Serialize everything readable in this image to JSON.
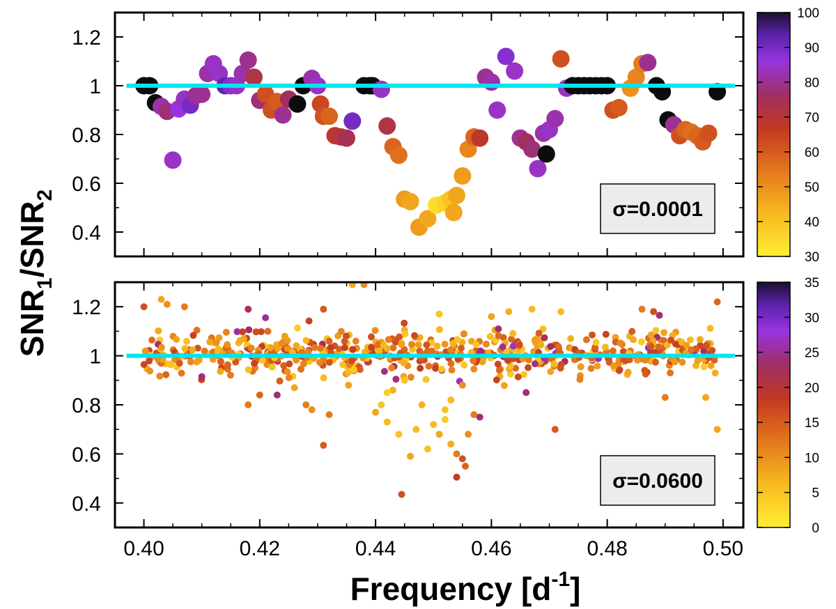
{
  "chart_data": [
    {
      "type": "scatter",
      "panel": "top",
      "annotation": "σ=0.0001",
      "xlim": [
        0.395,
        0.5035
      ],
      "ylim": [
        0.3,
        1.3
      ],
      "yticks": [
        "0.4",
        "0.6",
        "0.8",
        "1",
        "1.2"
      ],
      "ytick_values": [
        0.4,
        0.6,
        0.8,
        1.0,
        1.2
      ],
      "reference_line": {
        "y": 1.0,
        "x_from": 0.397,
        "x_to": 0.502,
        "color": "#00e5ee"
      },
      "colorbar": {
        "min": 30,
        "max": 100,
        "ticks": [
          "30",
          "40",
          "50",
          "60",
          "70",
          "80",
          "90",
          "100"
        ],
        "tick_values": [
          30,
          40,
          50,
          60,
          70,
          80,
          90,
          100
        ]
      },
      "point_size": "large",
      "points": [
        [
          0.4,
          1.0,
          100
        ],
        [
          0.401,
          1.0,
          100
        ],
        [
          0.402,
          0.93,
          100
        ],
        [
          0.403,
          0.915,
          82
        ],
        [
          0.404,
          0.895,
          78
        ],
        [
          0.405,
          0.695,
          84
        ],
        [
          0.406,
          0.905,
          86
        ],
        [
          0.407,
          0.945,
          84
        ],
        [
          0.408,
          0.92,
          90
        ],
        [
          0.409,
          0.96,
          80
        ],
        [
          0.41,
          0.965,
          80
        ],
        [
          0.411,
          1.05,
          82
        ],
        [
          0.412,
          1.09,
          84
        ],
        [
          0.413,
          1.05,
          84
        ],
        [
          0.414,
          1.0,
          93
        ],
        [
          0.415,
          1.0,
          88
        ],
        [
          0.416,
          1.0,
          84
        ],
        [
          0.417,
          1.05,
          82
        ],
        [
          0.418,
          1.105,
          80
        ],
        [
          0.419,
          1.035,
          72
        ],
        [
          0.42,
          0.94,
          78
        ],
        [
          0.421,
          0.965,
          62
        ],
        [
          0.422,
          0.9,
          62
        ],
        [
          0.423,
          0.935,
          60
        ],
        [
          0.424,
          0.88,
          80
        ],
        [
          0.425,
          0.945,
          76
        ],
        [
          0.4265,
          0.925,
          100
        ],
        [
          0.4275,
          1.0,
          100
        ],
        [
          0.429,
          1.03,
          82
        ],
        [
          0.43,
          1.0,
          84
        ],
        [
          0.4305,
          0.925,
          64
        ],
        [
          0.431,
          0.875,
          62
        ],
        [
          0.432,
          0.875,
          58
        ],
        [
          0.433,
          0.795,
          68
        ],
        [
          0.434,
          0.79,
          70
        ],
        [
          0.435,
          0.785,
          74
        ],
        [
          0.436,
          0.855,
          90
        ],
        [
          0.438,
          1.0,
          100
        ],
        [
          0.439,
          1.0,
          100
        ],
        [
          0.4395,
          1.0,
          100
        ],
        [
          0.441,
          0.985,
          84
        ],
        [
          0.442,
          0.835,
          72
        ],
        [
          0.443,
          0.75,
          58
        ],
        [
          0.444,
          0.715,
          56
        ],
        [
          0.445,
          0.535,
          48
        ],
        [
          0.446,
          0.525,
          46
        ],
        [
          0.4475,
          0.42,
          48
        ],
        [
          0.449,
          0.455,
          46
        ],
        [
          0.4505,
          0.51,
          34
        ],
        [
          0.452,
          0.52,
          36
        ],
        [
          0.453,
          0.535,
          40
        ],
        [
          0.4535,
          0.48,
          46
        ],
        [
          0.454,
          0.55,
          46
        ],
        [
          0.455,
          0.63,
          48
        ],
        [
          0.456,
          0.74,
          52
        ],
        [
          0.457,
          0.79,
          58
        ],
        [
          0.458,
          0.785,
          68
        ],
        [
          0.459,
          1.035,
          80
        ],
        [
          0.46,
          1.015,
          82
        ],
        [
          0.461,
          0.9,
          84
        ],
        [
          0.4625,
          1.12,
          88
        ],
        [
          0.464,
          1.06,
          84
        ],
        [
          0.465,
          0.785,
          80
        ],
        [
          0.466,
          0.77,
          76
        ],
        [
          0.467,
          0.74,
          78
        ],
        [
          0.468,
          0.66,
          84
        ],
        [
          0.469,
          0.805,
          82
        ],
        [
          0.4695,
          0.72,
          100
        ],
        [
          0.47,
          0.82,
          84
        ],
        [
          0.471,
          0.865,
          82
        ],
        [
          0.472,
          1.11,
          62
        ],
        [
          0.473,
          0.99,
          84
        ],
        [
          0.474,
          1.0,
          100
        ],
        [
          0.475,
          1.0,
          100
        ],
        [
          0.476,
          1.0,
          100
        ],
        [
          0.477,
          1.0,
          100
        ],
        [
          0.478,
          1.0,
          100
        ],
        [
          0.479,
          1.0,
          100
        ],
        [
          0.48,
          1.0,
          100
        ],
        [
          0.481,
          0.9,
          62
        ],
        [
          0.482,
          0.91,
          60
        ],
        [
          0.484,
          0.99,
          50
        ],
        [
          0.485,
          1.035,
          52
        ],
        [
          0.486,
          1.09,
          54
        ],
        [
          0.487,
          1.095,
          80
        ],
        [
          0.4885,
          1.0,
          100
        ],
        [
          0.4895,
          0.975,
          100
        ],
        [
          0.4905,
          0.86,
          100
        ],
        [
          0.4915,
          0.84,
          80
        ],
        [
          0.4925,
          0.795,
          62
        ],
        [
          0.4935,
          0.82,
          58
        ],
        [
          0.4945,
          0.81,
          56
        ],
        [
          0.4955,
          0.795,
          58
        ],
        [
          0.4965,
          0.77,
          60
        ],
        [
          0.4975,
          0.805,
          62
        ],
        [
          0.499,
          0.975,
          100
        ]
      ]
    },
    {
      "type": "scatter",
      "panel": "bottom",
      "annotation": "σ=0.0600",
      "xlabel": "Frequency [d-1]",
      "ylabel": "SNR1/SNR2",
      "xlim": [
        0.395,
        0.5035
      ],
      "ylim": [
        0.3,
        1.3
      ],
      "xticks": [
        "0.40",
        "0.42",
        "0.44",
        "0.46",
        "0.48",
        "0.50"
      ],
      "xtick_values": [
        0.4,
        0.42,
        0.44,
        0.46,
        0.48,
        0.5
      ],
      "yticks": [
        "0.4",
        "0.6",
        "0.8",
        "1",
        "1.2"
      ],
      "ytick_values": [
        0.4,
        0.6,
        0.8,
        1.0,
        1.2
      ],
      "reference_line": {
        "y": 1.0,
        "x_from": 0.397,
        "x_to": 0.502,
        "color": "#00e5ee"
      },
      "colorbar": {
        "min": 0,
        "max": 35,
        "ticks": [
          "0",
          "5",
          "10",
          "15",
          "20",
          "25",
          "30",
          "35"
        ],
        "tick_values": [
          0,
          5,
          10,
          15,
          20,
          25,
          30,
          35
        ]
      },
      "point_size": "small",
      "band": {
        "count": 620,
        "center": 1.01,
        "spread": 0.045,
        "color_min": 4,
        "color_max": 18
      },
      "outliers": [
        [
          0.4,
          1.2,
          16
        ],
        [
          0.403,
          1.23,
          8
        ],
        [
          0.404,
          1.21,
          10
        ],
        [
          0.407,
          1.2,
          12
        ],
        [
          0.41,
          0.915,
          24
        ],
        [
          0.418,
          1.19,
          22
        ],
        [
          0.421,
          1.155,
          25
        ],
        [
          0.426,
          0.87,
          8
        ],
        [
          0.428,
          0.8,
          12
        ],
        [
          0.429,
          0.78,
          10
        ],
        [
          0.431,
          0.635,
          15
        ],
        [
          0.432,
          0.76,
          12
        ],
        [
          0.431,
          1.19,
          15
        ],
        [
          0.436,
          1.29,
          8
        ],
        [
          0.438,
          1.29,
          10
        ],
        [
          0.44,
          0.77,
          8
        ],
        [
          0.441,
          0.8,
          5
        ],
        [
          0.442,
          0.73,
          6
        ],
        [
          0.443,
          0.86,
          7
        ],
        [
          0.444,
          0.68,
          5
        ],
        [
          0.4445,
          0.435,
          16
        ],
        [
          0.446,
          0.59,
          8
        ],
        [
          0.447,
          0.7,
          6
        ],
        [
          0.448,
          0.8,
          7
        ],
        [
          0.449,
          0.62,
          5
        ],
        [
          0.45,
          0.72,
          6
        ],
        [
          0.451,
          0.68,
          8
        ],
        [
          0.452,
          0.74,
          4
        ],
        [
          0.452,
          0.78,
          5
        ],
        [
          0.453,
          0.64,
          7
        ],
        [
          0.454,
          0.505,
          18
        ],
        [
          0.454,
          0.6,
          12
        ],
        [
          0.455,
          0.58,
          16
        ],
        [
          0.4555,
          0.55,
          14
        ],
        [
          0.456,
          0.68,
          10
        ],
        [
          0.457,
          0.76,
          12
        ],
        [
          0.458,
          0.75,
          24
        ],
        [
          0.451,
          1.17,
          5
        ],
        [
          0.466,
          0.85,
          24
        ],
        [
          0.467,
          1.19,
          6
        ],
        [
          0.471,
          0.7,
          15
        ],
        [
          0.472,
          1.18,
          6
        ],
        [
          0.486,
          1.19,
          12
        ],
        [
          0.488,
          1.18,
          16
        ],
        [
          0.489,
          1.165,
          24
        ],
        [
          0.49,
          0.83,
          12
        ],
        [
          0.497,
          0.83,
          8
        ],
        [
          0.499,
          0.7,
          8
        ],
        [
          0.499,
          1.22,
          14
        ],
        [
          0.442,
          0.85,
          4
        ],
        [
          0.445,
          0.9,
          5
        ],
        [
          0.453,
          0.82,
          6
        ],
        [
          0.455,
          0.88,
          10
        ],
        [
          0.42,
          0.84,
          14
        ],
        [
          0.418,
          0.8,
          12
        ],
        [
          0.423,
          0.84,
          24
        ],
        [
          0.46,
          1.16,
          8
        ],
        [
          0.463,
          1.18,
          7
        ]
      ]
    }
  ]
}
